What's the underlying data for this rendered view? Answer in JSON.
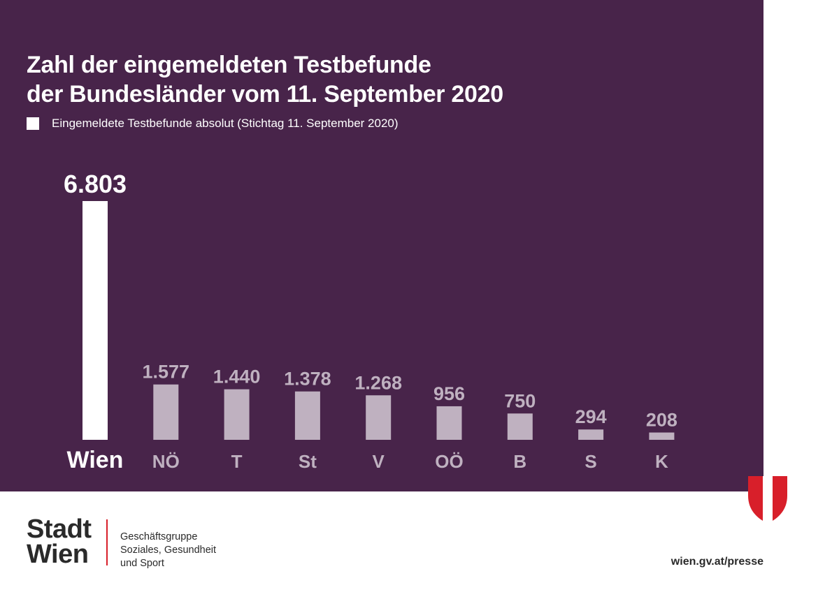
{
  "header": {
    "title_line1": "Zahl der eingemeldeten Testbefunde",
    "title_line2": "der Bundesländer vom 11. September 2020"
  },
  "legend": {
    "label": "Eingemeldete Testbefunde absolut (Stichtag 11. September 2020)"
  },
  "chart_data": {
    "type": "bar",
    "title": "Zahl der eingemeldeten Testbefunde der Bundesländer vom 11. September 2020",
    "categories": [
      "Wien",
      "NÖ",
      "T",
      "St",
      "V",
      "OÖ",
      "B",
      "S",
      "K"
    ],
    "values": [
      6803,
      1577,
      1440,
      1378,
      1268,
      956,
      750,
      294,
      208
    ],
    "value_labels": [
      "6.803",
      "1.577",
      "1.440",
      "1.378",
      "1.268",
      "956",
      "750",
      "294",
      "208"
    ],
    "series": [
      {
        "name": "Eingemeldete Testbefunde absolut (Stichtag 11. September 2020)",
        "values": [
          6803,
          1577,
          1440,
          1378,
          1268,
          956,
          750,
          294,
          208
        ]
      }
    ],
    "xlabel": "",
    "ylabel": "",
    "ylim": [
      0,
      6803
    ],
    "grid": false,
    "legend_position": "top-left",
    "colors": {
      "highlight": "#ffffff",
      "default": "#bfb1c0",
      "background": "#48244a"
    }
  },
  "footer": {
    "logo_line1": "Stadt",
    "logo_line2": "Wien",
    "dept_line1": "Geschäftsgruppe",
    "dept_line2": "Soziales, Gesundheit",
    "dept_line3": "und Sport",
    "url": "wien.gv.at/presse"
  },
  "colors": {
    "panel": "#48244a",
    "accent_red": "#d81f2a",
    "text_dark": "#2a2a2a"
  }
}
